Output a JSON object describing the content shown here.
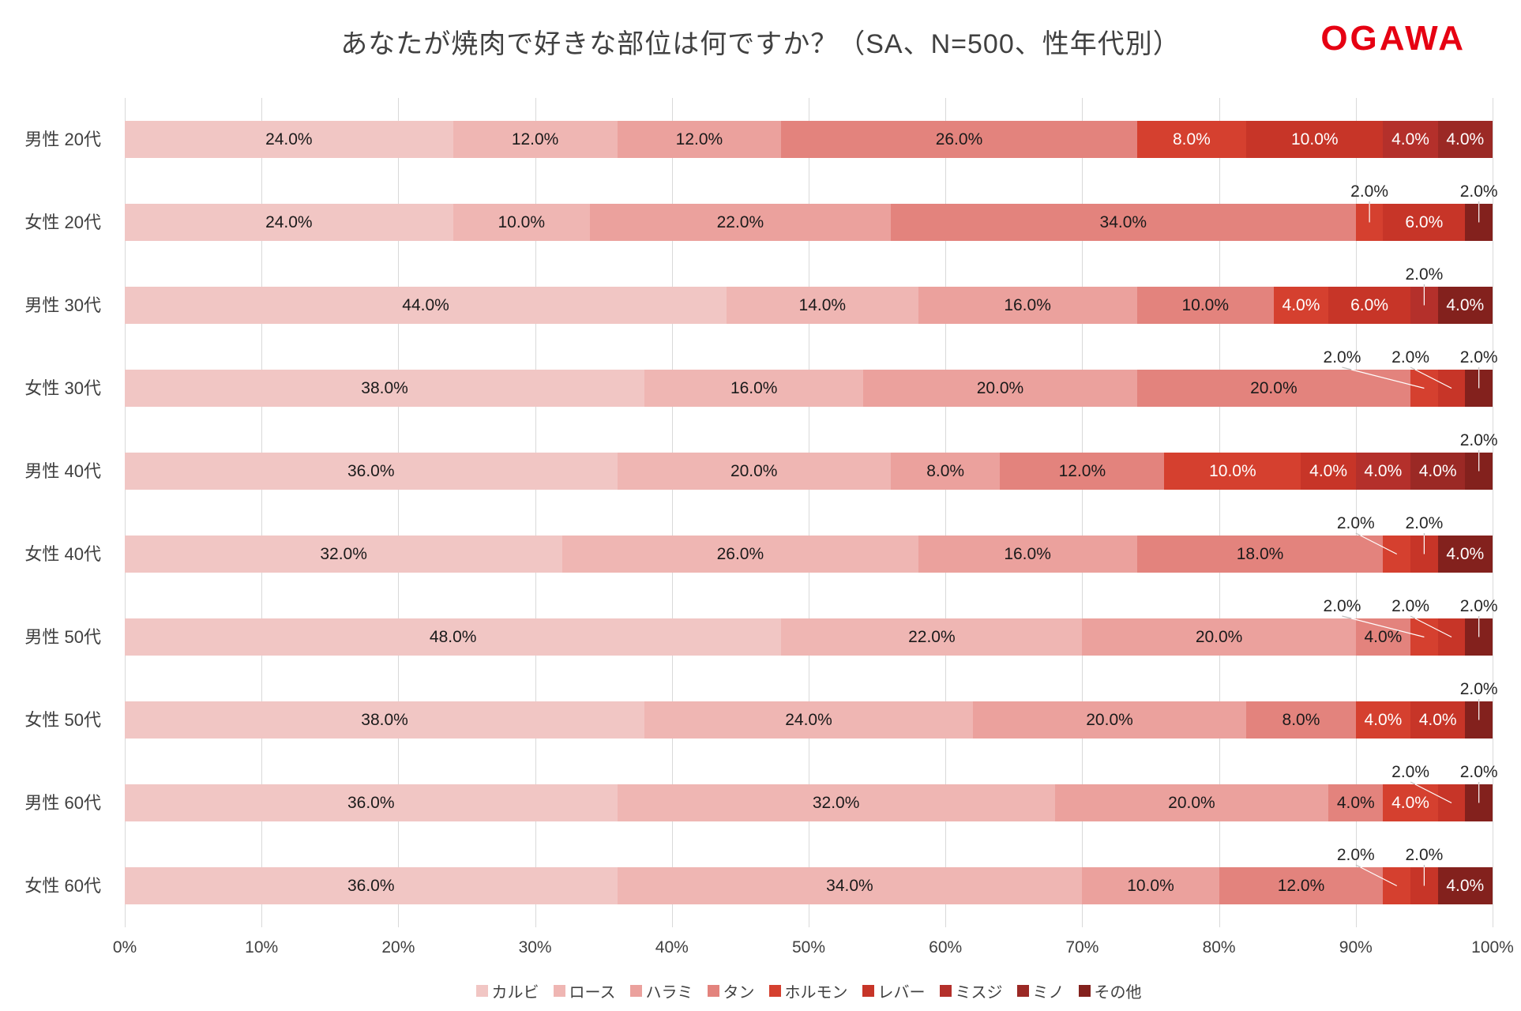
{
  "title": "あなたが焼肉で好きな部位は何ですか？（SA、N=500、性年代別）",
  "logo_text": "OGAWA",
  "logo_color": "#e60012",
  "chart_data": {
    "type": "bar",
    "stacked": true,
    "orientation": "horizontal",
    "title": "あなたが焼肉で好きな部位は何ですか？（SA、N=500、性年代別）",
    "xlabel": "",
    "ylabel": "",
    "xlim": [
      0,
      100
    ],
    "x_ticks": [
      "0%",
      "10%",
      "20%",
      "30%",
      "40%",
      "50%",
      "60%",
      "70%",
      "80%",
      "90%",
      "100%"
    ],
    "grid": true,
    "legend_position": "bottom",
    "value_suffix": "%",
    "label_rule": "segments >= 4% labeled inside bar; 2% segments labeled above bar with leader lines",
    "categories": [
      "男性 20代",
      "女性 20代",
      "男性 30代",
      "女性 30代",
      "男性 40代",
      "女性 40代",
      "男性 50代",
      "女性 50代",
      "男性 60代",
      "女性 60代"
    ],
    "series": [
      {
        "name": "カルビ",
        "color": "#f1c6c4",
        "values": [
          24,
          24,
          44,
          38,
          36,
          32,
          48,
          38,
          36,
          36
        ]
      },
      {
        "name": "ロース",
        "color": "#efb6b3",
        "values": [
          12,
          10,
          14,
          16,
          20,
          26,
          22,
          24,
          32,
          34
        ]
      },
      {
        "name": "ハラミ",
        "color": "#eba19d",
        "values": [
          12,
          22,
          16,
          20,
          8,
          16,
          20,
          20,
          20,
          10
        ]
      },
      {
        "name": "タン",
        "color": "#e3837d",
        "values": [
          26,
          34,
          10,
          20,
          12,
          18,
          4,
          8,
          4,
          12
        ]
      },
      {
        "name": "ホルモン",
        "color": "#d5402f",
        "values": [
          8,
          2,
          4,
          2,
          10,
          2,
          2,
          4,
          4,
          2
        ]
      },
      {
        "name": "レバー",
        "color": "#c73528",
        "values": [
          10,
          6,
          6,
          2,
          4,
          2,
          2,
          4,
          2,
          2
        ]
      },
      {
        "name": "ミスジ",
        "color": "#b4302b",
        "values": [
          4,
          0,
          2,
          0,
          4,
          0,
          0,
          0,
          0,
          0
        ]
      },
      {
        "name": "ミノ",
        "color": "#9b2925",
        "values": [
          4,
          0,
          0,
          0,
          4,
          0,
          0,
          0,
          0,
          0
        ]
      },
      {
        "name": "その他",
        "color": "#83211d",
        "values": [
          0,
          2,
          4,
          2,
          2,
          4,
          2,
          2,
          2,
          4
        ]
      }
    ]
  }
}
